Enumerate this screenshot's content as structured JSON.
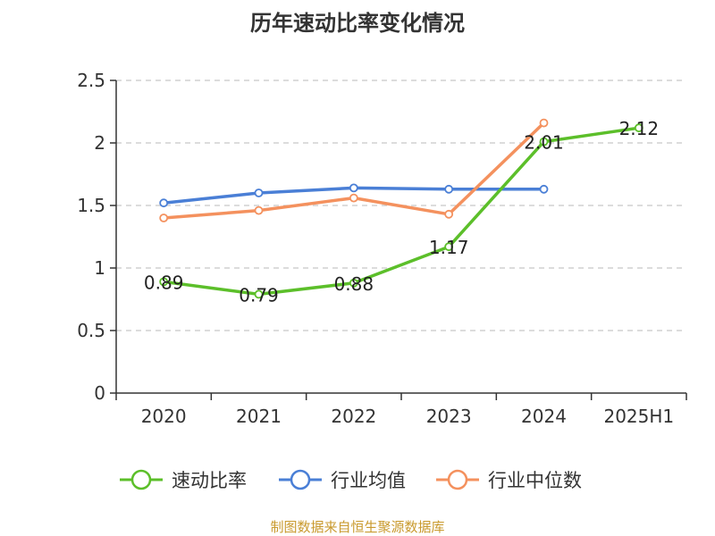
{
  "chart_data": {
    "type": "line",
    "title": "历年速动比率变化情况",
    "categories": [
      "2020",
      "2021",
      "2022",
      "2023",
      "2024",
      "2025H1"
    ],
    "ylim": [
      0,
      2.5
    ],
    "yticks": [
      "0",
      "0.5",
      "1",
      "1.5",
      "2",
      "2.5"
    ],
    "grid": true,
    "legend_position": "bottom",
    "series": [
      {
        "name": "速动比率",
        "color": "#5cbf2a",
        "values": [
          0.89,
          0.79,
          0.88,
          1.17,
          2.01,
          2.12
        ],
        "labels": [
          "0.89",
          "0.79",
          "0.88",
          "1.17",
          "2.01",
          "2.12"
        ]
      },
      {
        "name": "行业均值",
        "color": "#4a7fd6",
        "values": [
          1.52,
          1.6,
          1.64,
          1.63,
          1.63,
          null
        ]
      },
      {
        "name": "行业中位数",
        "color": "#f4915e",
        "values": [
          1.4,
          1.46,
          1.56,
          1.43,
          2.16,
          null
        ]
      }
    ]
  },
  "source": "制图数据来自恒生聚源数据库"
}
